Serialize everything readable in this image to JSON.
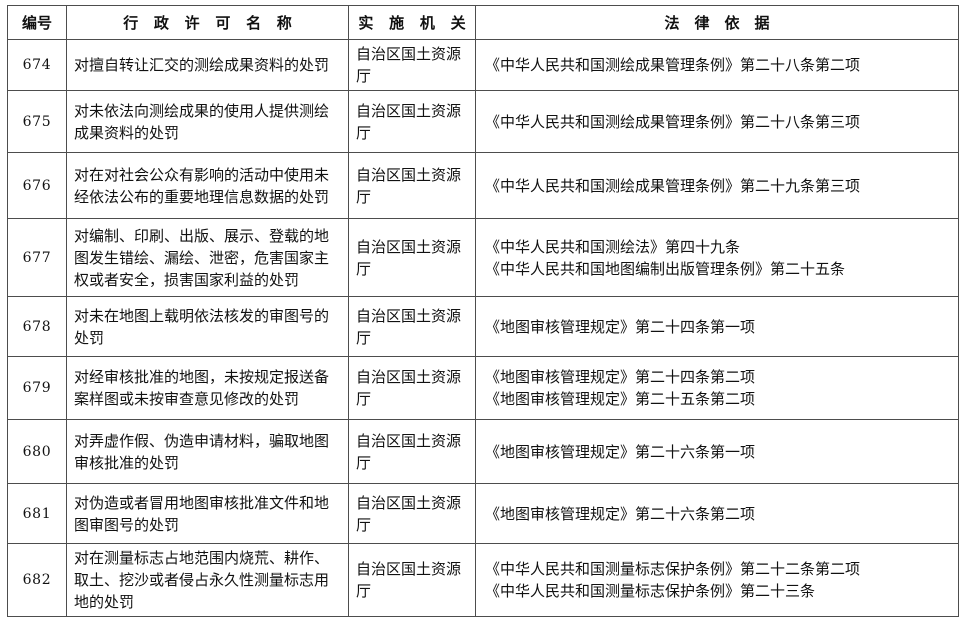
{
  "table": {
    "headers": {
      "id": "编号",
      "name": "行 政 许 可 名 称",
      "agency": "实 施 机 关",
      "laws": "法　律　依　据"
    },
    "rows": [
      {
        "id": "674",
        "name": "对擅自转让汇交的测绘成果资料的处罚",
        "agency": "自治区国土资源厅",
        "laws": "《中华人民共和国测绘成果管理条例》第二十八条第二项"
      },
      {
        "id": "675",
        "name": "对未依法向测绘成果的使用人提供测绘成果资料的处罚",
        "agency": "自治区国土资源厅",
        "laws": "《中华人民共和国测绘成果管理条例》第二十八条第三项"
      },
      {
        "id": "676",
        "name": "对在对社会公众有影响的活动中使用未经依法公布的重要地理信息数据的处罚",
        "agency": "自治区国土资源厅",
        "laws": "《中华人民共和国测绘成果管理条例》第二十九条第三项"
      },
      {
        "id": "677",
        "name": "对编制、印刷、出版、展示、登载的地图发生错绘、漏绘、泄密，危害国家主权或者安全，损害国家利益的处罚",
        "agency": "自治区国土资源厅",
        "laws": "《中华人民共和国测绘法》第四十九条\n《中华人民共和国地图编制出版管理条例》第二十五条"
      },
      {
        "id": "678",
        "name": "对未在地图上载明依法核发的审图号的处罚",
        "agency": "自治区国土资源厅",
        "laws": "《地图审核管理规定》第二十四条第一项"
      },
      {
        "id": "679",
        "name": "对经审核批准的地图，未按规定报送备案样图或未按审查意见修改的处罚",
        "agency": "自治区国土资源厅",
        "laws": "《地图审核管理规定》第二十四条第二项\n《地图审核管理规定》第二十五条第二项"
      },
      {
        "id": "680",
        "name": "对弄虚作假、伪造申请材料，骗取地图审核批准的处罚",
        "agency": "自治区国土资源厅",
        "laws": "《地图审核管理规定》第二十六条第一项"
      },
      {
        "id": "681",
        "name": "对伪造或者冒用地图审核批准文件和地图审图号的处罚",
        "agency": "自治区国土资源厅",
        "laws": "《地图审核管理规定》第二十六条第二项"
      },
      {
        "id": "682",
        "name": "对在测量标志占地范围内烧荒、耕作、取土、挖沙或者侵占永久性测量标志用地的处罚",
        "agency": "自治区国土资源厅",
        "laws": "《中华人民共和国测量标志保护条例》第二十二条第二项\n《中华人民共和国测量标志保护条例》第二十三条"
      }
    ],
    "colors": {
      "border": "#4d4d4d",
      "text": "#111111",
      "background": "#ffffff"
    }
  }
}
